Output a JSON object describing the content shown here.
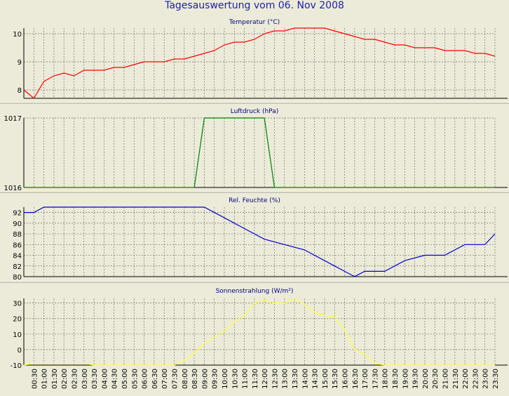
{
  "page_title": "Tagesauswertung vom 06. Nov 2008",
  "x_ticks": [
    "00:30",
    "01:00",
    "01:30",
    "02:00",
    "02:30",
    "03:00",
    "03:30",
    "04:00",
    "04:30",
    "05:00",
    "05:30",
    "06:00",
    "06:30",
    "07:00",
    "07:30",
    "08:00",
    "08:30",
    "09:00",
    "09:30",
    "10:00",
    "10:30",
    "11:00",
    "11:30",
    "12:00",
    "12:30",
    "13:00",
    "13:30",
    "14:00",
    "14:30",
    "15:00",
    "15:30",
    "16:00",
    "16:30",
    "17:00",
    "17:30",
    "18:00",
    "18:30",
    "19:00",
    "19:30",
    "20:00",
    "20:30",
    "21:00",
    "21:30",
    "22:00",
    "22:30",
    "23:00",
    "23:30"
  ],
  "chart_data": [
    {
      "type": "line",
      "title": "Temperatur (°C)",
      "y_ticks": [
        "8",
        "9",
        "10"
      ],
      "ylim": [
        7.7,
        10.2
      ],
      "grid": true,
      "color": "#ff0000",
      "x": [
        0,
        0.5,
        1,
        1.5,
        2,
        2.5,
        3,
        3.5,
        4,
        4.5,
        5,
        5.5,
        6,
        6.5,
        7,
        7.5,
        8,
        8.5,
        9,
        9.5,
        10,
        10.5,
        11,
        11.5,
        12,
        12.5,
        13,
        13.5,
        14,
        14.5,
        15,
        15.5,
        16,
        16.5,
        17,
        17.5,
        18,
        18.5,
        19,
        19.5,
        20,
        20.5,
        21,
        21.5,
        22,
        22.5,
        23,
        23.5
      ],
      "values": [
        8.0,
        7.7,
        8.3,
        8.5,
        8.6,
        8.5,
        8.7,
        8.7,
        8.7,
        8.8,
        8.8,
        8.9,
        9.0,
        9.0,
        9.0,
        9.1,
        9.1,
        9.2,
        9.3,
        9.4,
        9.6,
        9.7,
        9.7,
        9.8,
        10.0,
        10.1,
        10.1,
        10.2,
        10.2,
        10.2,
        10.2,
        10.1,
        10.0,
        9.9,
        9.8,
        9.8,
        9.7,
        9.6,
        9.6,
        9.5,
        9.5,
        9.5,
        9.4,
        9.4,
        9.4,
        9.3,
        9.3,
        9.2
      ]
    },
    {
      "type": "line",
      "title": "Luftdruck (hPa)",
      "y_ticks": [
        "1016",
        "1017"
      ],
      "ylim": [
        1016,
        1017
      ],
      "grid": true,
      "color": "#008000",
      "x": [
        0,
        8.5,
        9.0,
        12.0,
        12.5,
        23.5
      ],
      "values": [
        1016,
        1016,
        1017,
        1017,
        1016,
        1016
      ]
    },
    {
      "type": "line",
      "title": "Rel. Feuchte (%)",
      "y_ticks": [
        "80",
        "82",
        "84",
        "86",
        "88",
        "90",
        "92"
      ],
      "ylim": [
        80,
        93
      ],
      "grid": true,
      "color": "#0000cc",
      "x": [
        0,
        0.5,
        1,
        2,
        3,
        4,
        5,
        6,
        7,
        8,
        9,
        10,
        11,
        12,
        13,
        14,
        15,
        16,
        16.5,
        17,
        18,
        19,
        20,
        21,
        22,
        23,
        23.5
      ],
      "values": [
        92,
        92,
        93,
        93,
        93,
        93,
        93,
        93,
        93,
        93,
        93,
        91,
        89,
        87,
        86,
        85,
        83,
        81,
        80,
        81,
        81,
        83,
        84,
        84,
        86,
        86,
        88
      ]
    },
    {
      "type": "line",
      "title": "Sonnenstrahlung (W/m²)",
      "y_ticks": [
        "-10",
        "0",
        "10",
        "20",
        "30"
      ],
      "ylim": [
        -10,
        33
      ],
      "grid": true,
      "color": "#ffff40",
      "x": [
        0,
        0.5,
        1,
        1.5,
        2,
        2.5,
        3,
        3.5,
        4,
        4.5,
        5,
        5.5,
        6,
        6.5,
        7,
        7.5,
        8,
        8.5,
        9,
        9.5,
        10,
        10.5,
        11,
        11.5,
        12,
        12.5,
        13,
        13.5,
        14,
        14.5,
        15,
        15.5,
        16,
        16.5,
        17,
        17.5,
        18,
        18.5,
        19,
        19.5,
        20,
        20.5,
        21,
        21.5,
        22,
        22.5,
        23,
        23.5
      ],
      "values": [
        -10,
        -9,
        -9,
        -9,
        -9,
        -9,
        -9,
        -10,
        -10,
        -10,
        -10,
        -10,
        -10,
        -10,
        -10,
        -10,
        -7,
        -2,
        4,
        8,
        12,
        18,
        22,
        30,
        32,
        30,
        30,
        33,
        29,
        24,
        22,
        21,
        13,
        0,
        -3,
        -9,
        -10,
        -10,
        -10,
        -10,
        -10,
        -10,
        -10,
        -10,
        -10,
        -10,
        -10,
        -10
      ]
    }
  ]
}
